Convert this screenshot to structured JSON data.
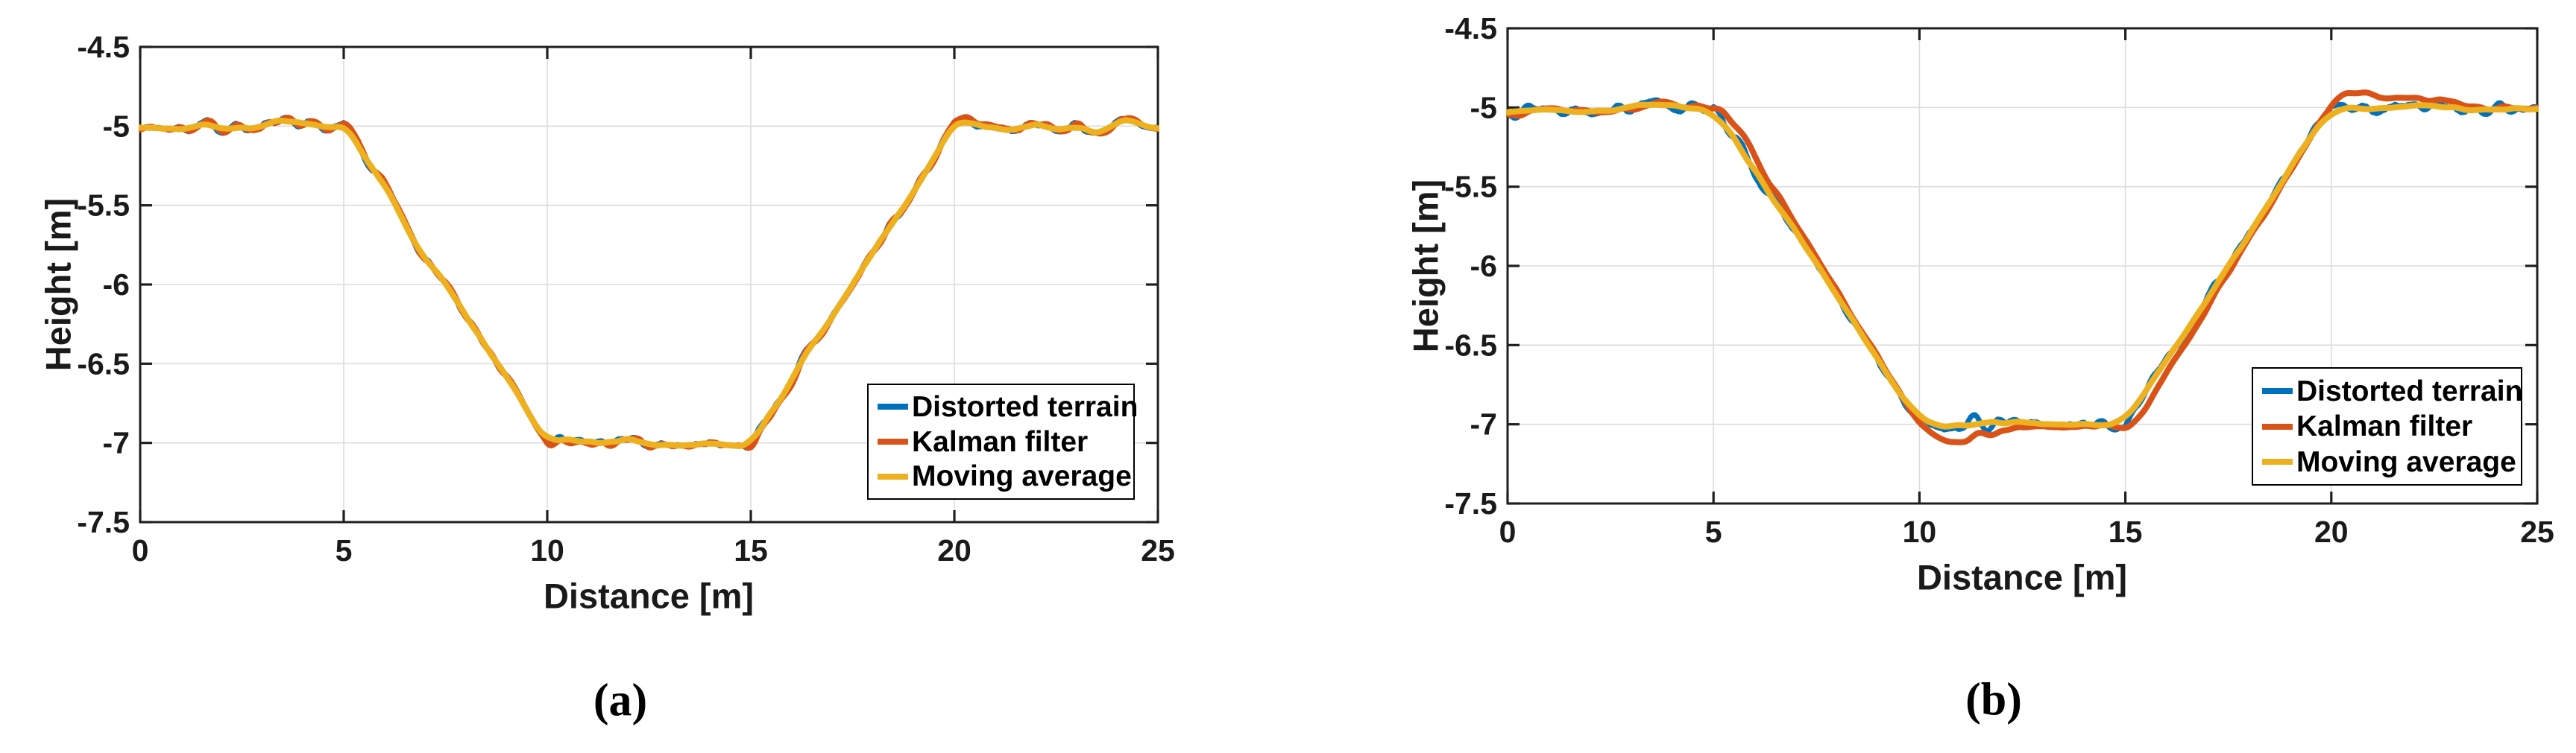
{
  "figure": {
    "background": "#ffffff",
    "description": "Two side-by-side MATLAB-style line charts comparing terrain filtering",
    "captions": {
      "a": "(a)",
      "b": "(b)"
    }
  },
  "colors": {
    "axis": "#1f1f1f",
    "grid": "#dcdcdc",
    "tick_text": "#1a1a1a",
    "background": "#ffffff",
    "series_blue": "#0072BD",
    "series_orange": "#D95319",
    "series_yellow": "#EDB120"
  },
  "chart_data": [
    {
      "type": "line",
      "panel": "a",
      "caption": "(a)",
      "xlabel": "Distance [m]",
      "ylabel": "Height [m]",
      "xlim": [
        0,
        25
      ],
      "ylim": [
        -7.5,
        -4.5
      ],
      "xticks": [
        0,
        5,
        10,
        15,
        20,
        25
      ],
      "xtick_labels": [
        "0",
        "5",
        "10",
        "15",
        "20",
        "25"
      ],
      "yticks": [
        -4.5,
        -5,
        -5.5,
        -6,
        -6.5,
        -7,
        -7.5
      ],
      "ytick_labels": [
        "-4.5",
        "-5",
        "-5.5",
        "-6",
        "-6.5",
        "-7",
        "-7.5"
      ],
      "grid": true,
      "legend_position": "right-center",
      "terrain_keypoints": {
        "x": [
          0,
          5,
          10,
          15,
          20,
          25
        ],
        "y": [
          -5,
          -5,
          -7,
          -7,
          -5,
          -5
        ]
      },
      "sample_step": 0.05,
      "noise": {
        "seed": 7,
        "sigma": 0.022
      },
      "series": [
        {
          "name": "Distorted terrain",
          "color": "#0072BD",
          "filter": "none",
          "stroke_width": 7
        },
        {
          "name": "Kalman filter",
          "color": "#D95319",
          "filter": "kalman",
          "alpha": 0.5,
          "beta": 0.02,
          "stroke_width": 8
        },
        {
          "name": "Moving average",
          "color": "#EDB120",
          "filter": "moving_average",
          "window_m": 0.55,
          "stroke_width": 8
        }
      ]
    },
    {
      "type": "line",
      "panel": "b",
      "caption": "(b)",
      "xlabel": "Distance [m]",
      "ylabel": "Height [m]",
      "xlim": [
        0,
        25
      ],
      "ylim": [
        -7.5,
        -4.5
      ],
      "xticks": [
        0,
        5,
        10,
        15,
        20,
        25
      ],
      "xtick_labels": [
        "0",
        "5",
        "10",
        "15",
        "20",
        "25"
      ],
      "yticks": [
        -4.5,
        -5,
        -5.5,
        -6,
        -6.5,
        -7,
        -7.5
      ],
      "ytick_labels": [
        "-4.5",
        "-5",
        "-5.5",
        "-6",
        "-6.5",
        "-7",
        "-7.5"
      ],
      "grid": true,
      "legend_position": "right-center",
      "terrain_keypoints": {
        "x": [
          0,
          5,
          10,
          15,
          20,
          25
        ],
        "y": [
          -5,
          -5,
          -7,
          -7,
          -5,
          -5
        ]
      },
      "sample_step": 0.05,
      "noise": {
        "seed": 13,
        "sigma": 0.022
      },
      "series": [
        {
          "name": "Distorted terrain",
          "color": "#0072BD",
          "filter": "none",
          "stroke_width": 7
        },
        {
          "name": "Kalman filter",
          "color": "#D95319",
          "filter": "kalman",
          "alpha": 0.14,
          "beta": 0.004,
          "stroke_width": 8
        },
        {
          "name": "Moving average",
          "color": "#EDB120",
          "filter": "moving_average",
          "window_m": 1.05,
          "stroke_width": 8
        }
      ]
    }
  ]
}
